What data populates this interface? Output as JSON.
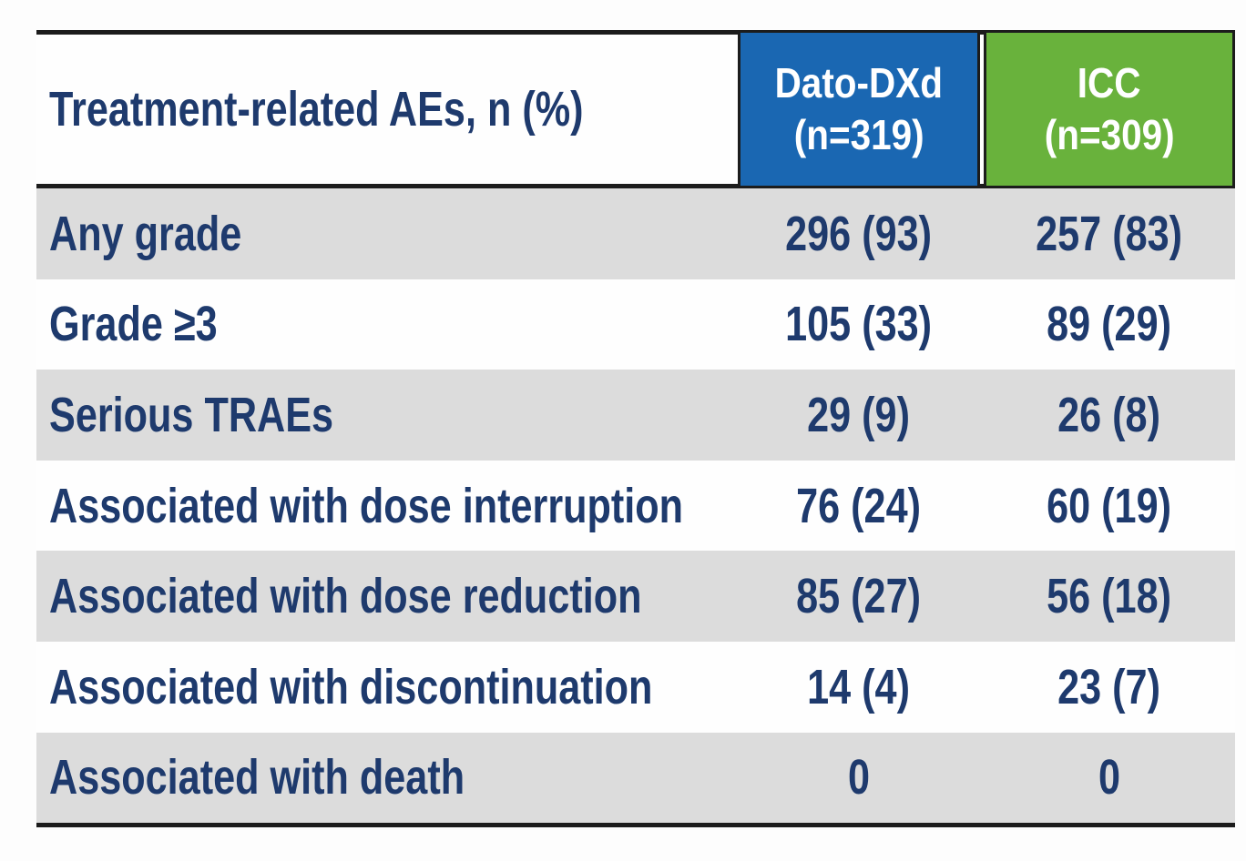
{
  "chart_data": {
    "type": "table",
    "title": "Treatment-related AEs, n (%)",
    "columns": [
      "Treatment-related AEs, n (%)",
      "Dato-DXd (n=319)",
      "ICC (n=309)"
    ],
    "group_sizes": {
      "dato_dxd_n": 319,
      "icc_n": 309
    },
    "rows": [
      {
        "label": "Any grade",
        "dato_dxd": "296 (93)",
        "icc": "257 (83)"
      },
      {
        "label": "Grade ≥3",
        "dato_dxd": "105 (33)",
        "icc": "89 (29)"
      },
      {
        "label": "Serious TRAEs",
        "dato_dxd": "29 (9)",
        "icc": "26 (8)"
      },
      {
        "label": "Associated with dose interruption",
        "dato_dxd": "76 (24)",
        "icc": "60 (19)"
      },
      {
        "label": "Associated with dose reduction",
        "dato_dxd": "85 (27)",
        "icc": "56 (18)"
      },
      {
        "label": "Associated with discontinuation",
        "dato_dxd": "14 (4)",
        "icc": "23 (7)"
      },
      {
        "label": "Associated with death",
        "dato_dxd": "0",
        "icc": "0"
      }
    ]
  },
  "header": {
    "label": "Treatment-related AEs, n (%)",
    "dato_line1": "Dato-DXd",
    "dato_line2": "(n=319)",
    "icc_line1": "ICC",
    "icc_line2": "(n=309)"
  },
  "rows": [
    {
      "label": "Any grade",
      "dato": "296 (93)",
      "icc": "257 (83)"
    },
    {
      "label": "Grade ≥3",
      "dato": "105 (33)",
      "icc": "89 (29)"
    },
    {
      "label": "Serious TRAEs",
      "dato": "29 (9)",
      "icc": "26 (8)"
    },
    {
      "label": "Associated with dose interruption",
      "dato": "76 (24)",
      "icc": "60 (19)"
    },
    {
      "label": "Associated with dose reduction",
      "dato": "85 (27)",
      "icc": "56 (18)"
    },
    {
      "label": "Associated with discontinuation",
      "dato": "14 (4)",
      "icc": "23 (7)"
    },
    {
      "label": "Associated with death",
      "dato": "0",
      "icc": "0"
    }
  ],
  "colors": {
    "dato_header_bg": "#1a67b2",
    "icc_header_bg": "#69b23c",
    "text_navy": "#1e3a6d",
    "row_gray": "#dcdcdc",
    "row_white": "#fefefe",
    "rule_black": "#1c1c1c"
  }
}
